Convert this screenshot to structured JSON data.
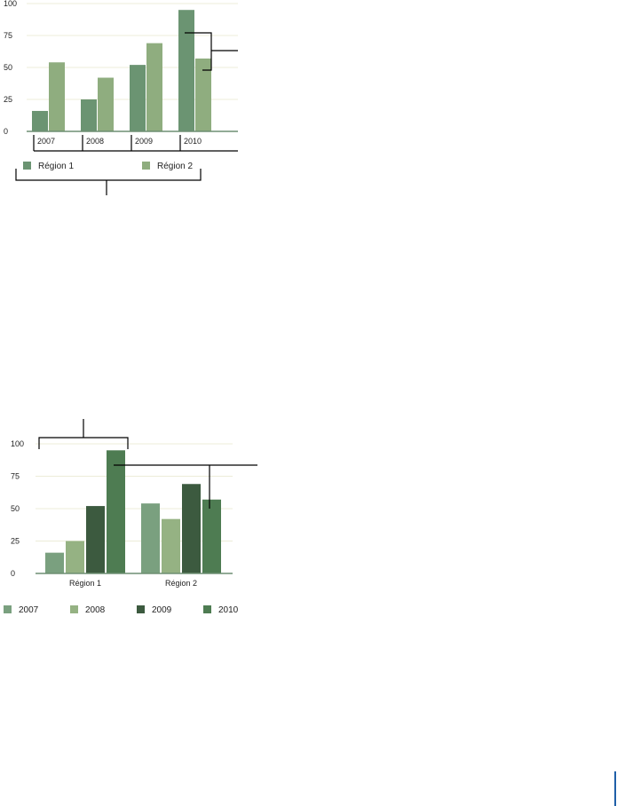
{
  "chart_data": [
    {
      "type": "bar",
      "categories": [
        "2007",
        "2008",
        "2009",
        "2010"
      ],
      "series": [
        {
          "name": "Région 1",
          "color": "#6b9472",
          "values": [
            16,
            25,
            52,
            95
          ]
        },
        {
          "name": "Région 2",
          "color": "#8fad7f",
          "values": [
            54,
            42,
            69,
            57
          ]
        }
      ],
      "ylim": [
        0,
        100
      ],
      "yticks": [
        0,
        25,
        50,
        75,
        100
      ],
      "grid": true,
      "legend": "bottom"
    },
    {
      "type": "bar",
      "categories": [
        "Région 1",
        "Région 2"
      ],
      "series": [
        {
          "name": "2007",
          "color": "#7aa07f",
          "values": [
            16,
            54
          ]
        },
        {
          "name": "2008",
          "color": "#95b283",
          "values": [
            25,
            42
          ]
        },
        {
          "name": "2009",
          "color": "#3c5a3f",
          "values": [
            52,
            69
          ]
        },
        {
          "name": "2010",
          "color": "#4e7c52",
          "values": [
            95,
            57
          ]
        }
      ],
      "ylim": [
        0,
        100
      ],
      "yticks": [
        0,
        25,
        50,
        75,
        100
      ],
      "grid": true,
      "legend": "bottom"
    }
  ]
}
